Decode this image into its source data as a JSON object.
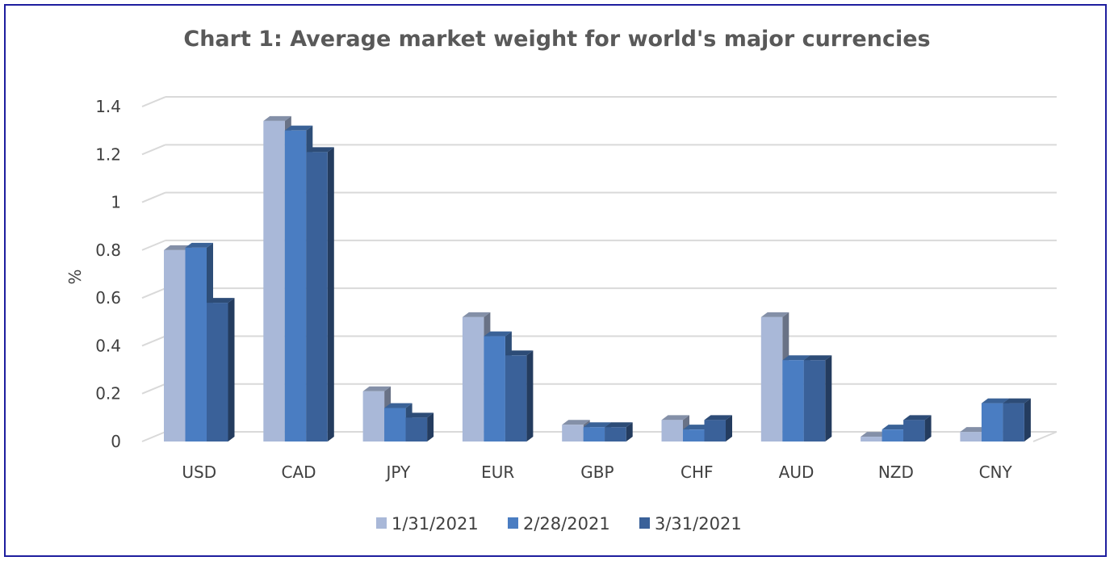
{
  "chart_data": {
    "type": "bar",
    "style": "3d-clustered-column",
    "title": "Chart 1: Average market weight for world's major currencies",
    "ylabel": "%",
    "xlabel": "",
    "ylim": [
      0,
      1.4
    ],
    "yticks": [
      "0",
      "0.2",
      "0.4",
      "0.6",
      "0.8",
      "1",
      "1.2",
      "1.4"
    ],
    "ytick_values": [
      0,
      0.2,
      0.4,
      0.6,
      0.8,
      1,
      1.2,
      1.4
    ],
    "grid": true,
    "legend_position": "bottom",
    "categories": [
      "USD",
      "CAD",
      "JPY",
      "EUR",
      "GBP",
      "CHF",
      "AUD",
      "NZD",
      "CNY"
    ],
    "series": [
      {
        "name": "1/31/2021",
        "color": "#a9b8d8",
        "values": [
          0.8,
          1.34,
          0.21,
          0.52,
          0.07,
          0.09,
          0.52,
          0.02,
          0.04
        ]
      },
      {
        "name": "2/28/2021",
        "color": "#4a7dc2",
        "values": [
          0.81,
          1.3,
          0.14,
          0.44,
          0.06,
          0.05,
          0.34,
          0.05,
          0.16
        ]
      },
      {
        "name": "3/31/2021",
        "color": "#3a6199",
        "values": [
          0.58,
          1.21,
          0.1,
          0.36,
          0.06,
          0.09,
          0.34,
          0.09,
          0.16
        ]
      }
    ]
  }
}
